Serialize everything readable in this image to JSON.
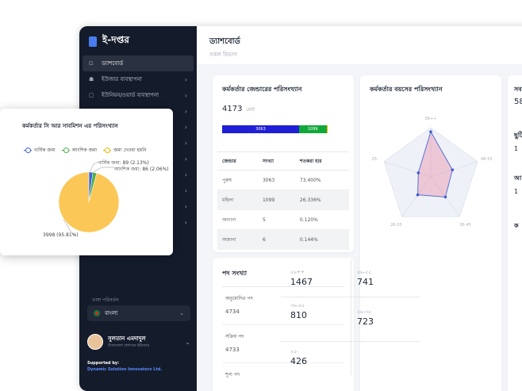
{
  "app": {
    "name": "ই-দপ্তর"
  },
  "sidebar": {
    "items": [
      {
        "icon": "chart-icon",
        "glyph": "⊡",
        "label": "ড্যাশবোর্ড",
        "active": true,
        "chev": ""
      },
      {
        "icon": "users-icon",
        "glyph": "☗",
        "label": "ইউজার ব্যবস্থাপনা",
        "chev": "›"
      },
      {
        "icon": "office-icon",
        "glyph": "▢",
        "label": "ইউনিয়ন/ওয়ার্ড ব্যবস্থাপনা",
        "chev": "›"
      },
      {
        "icon": "dot-icon",
        "glyph": "",
        "label": "",
        "chev": "›"
      },
      {
        "icon": "dot-icon",
        "glyph": "",
        "label": "",
        "chev": "›"
      },
      {
        "icon": "dot-icon",
        "glyph": "",
        "label": "",
        "chev": "›"
      },
      {
        "icon": "dot-icon",
        "glyph": "",
        "label": "",
        "chev": "›"
      },
      {
        "icon": "dot-icon",
        "glyph": "",
        "label": "",
        "chev": "›"
      },
      {
        "icon": "dot-icon",
        "glyph": "",
        "label": "",
        "chev": "›"
      },
      {
        "icon": "dot-icon",
        "glyph": "",
        "label": "",
        "chev": "›"
      },
      {
        "icon": "dot-icon",
        "glyph": "",
        "label": "",
        "chev": "›"
      }
    ],
    "lang_label": "ভাষা পরিবর্তন",
    "lang_value": "বাংলা",
    "user_name": "সুলতান এমদাদুল",
    "user_role": "উপজেলা প্রশাসক ইউজার",
    "supported_label": "Supported by:",
    "supported_org": "Dynamic Solution Innovators Ltd."
  },
  "header": {
    "title": "ড্যাশবোর্ড",
    "subtitle": "সকল বিভাগ"
  },
  "gender_card": {
    "title": "কর্মকর্তার জেন্ডারের পরিসংখ্যান",
    "total": "4173",
    "total_unit": "মোট",
    "bar_male": "3063",
    "bar_female": "1099",
    "colors": {
      "male": "#1f1fd6",
      "female": "#11a83a",
      "other": "#f2b600"
    },
    "headers": [
      "জেন্ডার",
      "সংখ্যা",
      "শতকরা হার"
    ],
    "rows": [
      [
        "পুরুষ",
        "3063",
        "73.400%"
      ],
      [
        "মহিলা",
        "1099",
        "26.336%"
      ],
      [
        "অন্যান্য",
        "5",
        "0.120%"
      ],
      [
        "অজানা",
        "6",
        "0.144%"
      ]
    ]
  },
  "age_card": {
    "title": "কর্মকর্তার বয়সের পরিসংখ্যান",
    "labels": [
      "56++",
      "46-55",
      "36-45",
      "26-35",
      "25-"
    ],
    "cells": [
      {
        "label": "৫৬++",
        "value": "1467"
      },
      {
        "label": "৪৬-৫৫",
        "value": "741"
      },
      {
        "label": "৩৬-৪৫",
        "value": "810"
      },
      {
        "label": "২৬-৩৫",
        "value": "723"
      },
      {
        "label": "২৫-",
        "value": "426"
      }
    ]
  },
  "post_card": {
    "title": "পদ সংখ্যা",
    "rows": [
      {
        "label": "অনুমোদিত পদ",
        "value": "4734"
      },
      {
        "label": "সক্রিয় পদ",
        "value": "4733"
      },
      {
        "label": "শূন্য পদ",
        "value": ""
      }
    ]
  },
  "right_col": {
    "items": [
      "সব",
      "58",
      "ছুটি",
      "1",
      "আ",
      "1",
      "ক"
    ]
  },
  "popup": {
    "title": "কর্মকর্তার সি আর সাবমিশন এর পরিসংখ্যান",
    "legend": [
      {
        "label": "বার্ষিক জমা",
        "color": "#3d63d6"
      },
      {
        "label": "আংশিক জমা",
        "color": "#4cae4c"
      },
      {
        "label": "জমা দেওয়া হয়নি",
        "color": "#f2b600"
      }
    ],
    "annotations": [
      "বার্ষিক জমা: 89 (2.13%)",
      "আংশিক জমা: 86 (2.06%)",
      "3998 (95.81%)"
    ]
  },
  "chart_data": [
    {
      "type": "pie",
      "title": "কর্মকর্তার সি আর সাবমিশন এর পরিসংখ্যান",
      "categories": [
        "বার্ষিক জমা",
        "আংশিক জমা",
        "জমা দেওয়া হয়নি"
      ],
      "values": [
        89,
        86,
        3998
      ],
      "colors": [
        "#3d63d6",
        "#4cae4c",
        "#fbc858"
      ],
      "legend": "top"
    },
    {
      "type": "radar",
      "title": "কর্মকর্তার বয়সের পরিসংখ্যান",
      "categories": [
        "56++",
        "46-55",
        "36-45",
        "26-35",
        "25-"
      ],
      "values": [
        1467,
        741,
        810,
        723,
        426
      ],
      "rmax": 1600
    }
  ]
}
